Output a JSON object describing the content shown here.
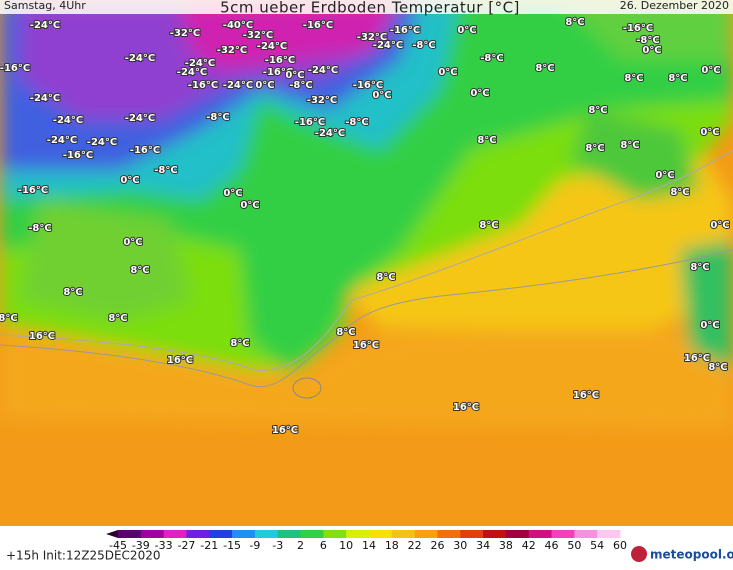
{
  "header": {
    "left": "Samstag, 4Uhr",
    "title": "5cm ueber Erdboden Temperatur [°C]",
    "right": "26. Dezember 2020"
  },
  "labels": [
    "-24°C",
    "-32°C",
    "-40°C",
    "-32°C",
    "-16°C",
    "-32°C",
    "-16°C",
    "0°C",
    "8°C",
    "-16°C",
    "-8°C",
    "0°C",
    "-24°C",
    "-24°C",
    "-32°C",
    "-24°C",
    "-24°C",
    "-8°C",
    "-8°C",
    "0°C",
    "8°C",
    "8°C",
    "8°C",
    "0°C",
    "-16°C",
    "-24°C",
    "-16°C",
    "-16°C",
    "0°C",
    "-8°C",
    "-24°C",
    "-16°C",
    "-24°C",
    "0°C",
    "-16°C",
    "0°C",
    "0°C",
    "-32°C",
    "-24°C",
    "-8°C",
    "-16°C",
    "-8°C",
    "-24°C",
    "-24°C",
    "-24°C",
    "8°C",
    "0°C",
    "-24°C",
    "-24°C",
    "-16°C",
    "-16°C",
    "8°C",
    "8°C",
    "8°C",
    "0°C",
    "-8°C",
    "0°C",
    "-16°C",
    "0°C",
    "0°C",
    "8°C",
    "-8°C",
    "8°C",
    "0°C",
    "0°C",
    "8°C",
    "8°C",
    "8°C",
    "8°C",
    "8°C",
    "8°C",
    "8°C",
    "0°C",
    "16°C",
    "16°C",
    "8°C",
    "16°C",
    "16°C",
    "8°C",
    "16°C",
    "16°C",
    "16°C"
  ],
  "colorbar": {
    "ticks": [
      -45,
      -39,
      -33,
      -27,
      -21,
      -15,
      -9,
      -3,
      2,
      6,
      10,
      14,
      18,
      22,
      26,
      30,
      34,
      38,
      42,
      46,
      50,
      54,
      60
    ]
  },
  "footer": {
    "left": "+15h  Init:12Z25DEC2020",
    "logo": "meteopool.org"
  }
}
